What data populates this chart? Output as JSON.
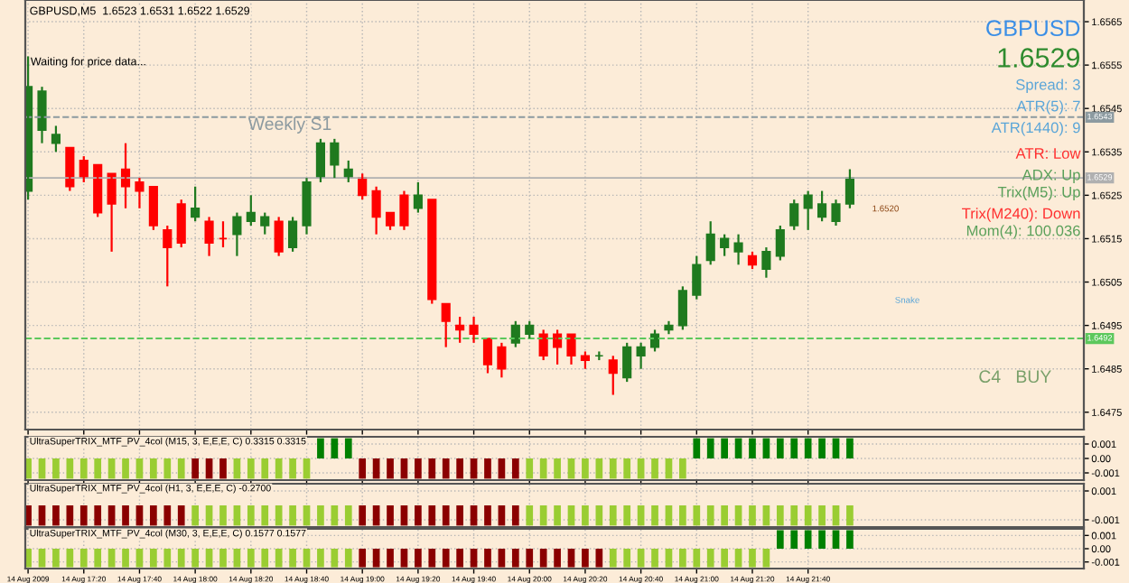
{
  "chart_data": [
    {
      "type": "candlestick",
      "title": "GBPUSD,M5  1.6523 1.6531 1.6522 1.6529",
      "x": [
        "2009-08-14T17:00",
        "2009-08-14T17:05",
        "2009-08-14T17:10",
        "2009-08-14T17:15",
        "2009-08-14T17:20",
        "2009-08-14T17:25",
        "2009-08-14T17:30",
        "2009-08-14T17:35",
        "2009-08-14T17:40",
        "2009-08-14T17:45",
        "2009-08-14T17:50",
        "2009-08-14T17:55",
        "2009-08-14T18:00",
        "2009-08-14T18:05",
        "2009-08-14T18:10",
        "2009-08-14T18:15",
        "2009-08-14T18:20",
        "2009-08-14T18:25",
        "2009-08-14T18:30",
        "2009-08-14T18:35",
        "2009-08-14T18:40",
        "2009-08-14T18:45",
        "2009-08-14T18:50",
        "2009-08-14T18:55",
        "2009-08-14T19:00",
        "2009-08-14T19:05",
        "2009-08-14T19:10",
        "2009-08-14T19:15",
        "2009-08-14T19:20",
        "2009-08-14T19:25",
        "2009-08-14T19:30",
        "2009-08-14T19:35",
        "2009-08-14T19:40",
        "2009-08-14T19:45",
        "2009-08-14T19:50",
        "2009-08-14T19:55",
        "2009-08-14T20:00",
        "2009-08-14T20:05",
        "2009-08-14T20:10",
        "2009-08-14T20:15",
        "2009-08-14T20:20",
        "2009-08-14T20:25",
        "2009-08-14T20:30",
        "2009-08-14T20:35",
        "2009-08-14T20:40",
        "2009-08-14T20:45",
        "2009-08-14T20:50",
        "2009-08-14T20:55",
        "2009-08-14T21:00",
        "2009-08-14T21:05",
        "2009-08-14T21:10",
        "2009-08-14T21:15",
        "2009-08-14T21:20",
        "2009-08-14T21:25",
        "2009-08-14T21:30",
        "2009-08-14T21:35",
        "2009-08-14T21:40",
        "2009-08-14T21:45",
        "2009-08-14T21:50",
        "2009-08-14T21:55"
      ],
      "ohlc": [
        [
          1.6526,
          1.6557,
          1.6524,
          1.655
        ],
        [
          1.654,
          1.655,
          1.6537,
          1.6549
        ],
        [
          1.6537,
          1.6541,
          1.6535,
          1.6539
        ],
        [
          1.6536,
          1.6536,
          1.6526,
          1.6527
        ],
        [
          1.6533,
          1.6534,
          1.6528,
          1.6529
        ],
        [
          1.6532,
          1.6532,
          1.652,
          1.6521
        ],
        [
          1.653,
          1.653,
          1.6512,
          1.6523
        ],
        [
          1.6531,
          1.6537,
          1.6522,
          1.6527
        ],
        [
          1.6528,
          1.6529,
          1.6522,
          1.6526
        ],
        [
          1.6527,
          1.6527,
          1.6517,
          1.6518
        ],
        [
          1.6517,
          1.6518,
          1.6504,
          1.6513
        ],
        [
          1.6523,
          1.6524,
          1.6513,
          1.6514
        ],
        [
          1.652,
          1.6527,
          1.6519,
          1.6522
        ],
        [
          1.6519,
          1.652,
          1.6511,
          1.6514
        ],
        [
          1.6515,
          1.6519,
          1.6513,
          1.6515
        ],
        [
          1.6516,
          1.6521,
          1.6511,
          1.652
        ],
        [
          1.6519,
          1.6525,
          1.6518,
          1.6521
        ],
        [
          1.6518,
          1.6521,
          1.6516,
          1.652
        ],
        [
          1.6519,
          1.652,
          1.6511,
          1.6512
        ],
        [
          1.6513,
          1.652,
          1.6512,
          1.6519
        ],
        [
          1.6518,
          1.6529,
          1.6516,
          1.6528
        ],
        [
          1.6529,
          1.6538,
          1.6528,
          1.6537
        ],
        [
          1.6532,
          1.6538,
          1.6529,
          1.6537
        ],
        [
          1.6529,
          1.6533,
          1.6528,
          1.6531
        ],
        [
          1.6529,
          1.653,
          1.6524,
          1.6525
        ],
        [
          1.6526,
          1.6527,
          1.6516,
          1.652
        ],
        [
          1.6521,
          1.6521,
          1.6517,
          1.6518
        ],
        [
          1.6525,
          1.6526,
          1.6517,
          1.6518
        ],
        [
          1.6522,
          1.6528,
          1.6521,
          1.6525
        ],
        [
          1.6524,
          1.6524,
          1.65,
          1.6501
        ],
        [
          1.65,
          1.65,
          1.649,
          1.6496
        ],
        [
          1.6495,
          1.6497,
          1.6491,
          1.6494
        ],
        [
          1.6495,
          1.6497,
          1.6491,
          1.6493
        ],
        [
          1.6492,
          1.6492,
          1.6484,
          1.6486
        ],
        [
          1.649,
          1.6491,
          1.6483,
          1.6485
        ],
        [
          1.6491,
          1.6496,
          1.649,
          1.6495
        ],
        [
          1.6493,
          1.6496,
          1.6492,
          1.6495
        ],
        [
          1.6493,
          1.6494,
          1.6487,
          1.6488
        ],
        [
          1.6493,
          1.6494,
          1.6486,
          1.649
        ],
        [
          1.6493,
          1.6493,
          1.6486,
          1.6488
        ],
        [
          1.6488,
          1.6489,
          1.6485,
          1.6487
        ],
        [
          1.6488,
          1.6489,
          1.6487,
          1.6488
        ],
        [
          1.6487,
          1.6488,
          1.6479,
          1.6484
        ],
        [
          1.6483,
          1.6491,
          1.6482,
          1.649
        ],
        [
          1.6488,
          1.6491,
          1.6485,
          1.649
        ],
        [
          1.649,
          1.6494,
          1.6489,
          1.6493
        ],
        [
          1.6494,
          1.6496,
          1.6493,
          1.6495
        ],
        [
          1.6495,
          1.6504,
          1.6494,
          1.6503
        ],
        [
          1.6502,
          1.6511,
          1.6501,
          1.6509
        ],
        [
          1.651,
          1.6519,
          1.6509,
          1.6516
        ],
        [
          1.6513,
          1.6516,
          1.6511,
          1.6515
        ],
        [
          1.6512,
          1.6516,
          1.6509,
          1.6514
        ],
        [
          1.6511,
          1.6512,
          1.6508,
          1.6509
        ],
        [
          1.6508,
          1.6513,
          1.6506,
          1.6512
        ],
        [
          1.6511,
          1.6518,
          1.651,
          1.6517
        ],
        [
          1.6518,
          1.6524,
          1.6517,
          1.6523
        ],
        [
          1.6522,
          1.6526,
          1.6517,
          1.6525
        ],
        [
          1.652,
          1.6526,
          1.6519,
          1.6523
        ],
        [
          1.6519,
          1.6524,
          1.6518,
          1.6523
        ],
        [
          1.6523,
          1.6531,
          1.6522,
          1.6529
        ]
      ],
      "colors": [
        "#1f7a1f",
        "#1f7a1f",
        "#1f7a1f",
        "#ff0000",
        "#ff0000",
        "#ff0000",
        "#ff0000",
        "#ff0000",
        "#ff0000",
        "#ff0000",
        "#ff0000",
        "#ff0000",
        "#1f7a1f",
        "#ff0000",
        "#ff0000",
        "#1f7a1f",
        "#1f7a1f",
        "#1f7a1f",
        "#ff0000",
        "#1f7a1f",
        "#1f7a1f",
        "#1f7a1f",
        "#1f7a1f",
        "#1f7a1f",
        "#ff0000",
        "#ff0000",
        "#ff0000",
        "#ff0000",
        "#1f7a1f",
        "#ff0000",
        "#ff0000",
        "#ff0000",
        "#ff0000",
        "#ff0000",
        "#ff0000",
        "#1f7a1f",
        "#1f7a1f",
        "#ff0000",
        "#ff0000",
        "#ff0000",
        "#ff0000",
        "#1f7a1f",
        "#ff0000",
        "#1f7a1f",
        "#1f7a1f",
        "#1f7a1f",
        "#1f7a1f",
        "#1f7a1f",
        "#1f7a1f",
        "#1f7a1f",
        "#1f7a1f",
        "#1f7a1f",
        "#ff0000",
        "#1f7a1f",
        "#1f7a1f",
        "#1f7a1f",
        "#1f7a1f",
        "#1f7a1f",
        "#1f7a1f",
        "#1f7a1f"
      ],
      "xlim": [
        "2009-08-14T16:59",
        "2009-08-14T23:19"
      ],
      "xticks": [
        {
          "value": "2009-08-14T17:00",
          "label": null
        },
        {
          "value": "2009-08-14T17:20",
          "label": null
        },
        {
          "value": "2009-08-14T17:40",
          "label": null
        },
        {
          "value": "2009-08-14T18:00",
          "label": null
        },
        {
          "value": "2009-08-14T18:20",
          "label": null
        },
        {
          "value": "2009-08-14T18:40",
          "label": null
        },
        {
          "value": "2009-08-14T19:00",
          "label": null
        },
        {
          "value": "2009-08-14T19:20",
          "label": null
        },
        {
          "value": "2009-08-14T19:40",
          "label": null
        },
        {
          "value": "2009-08-14T20:00",
          "label": null
        },
        {
          "value": "2009-08-14T20:20",
          "label": null
        },
        {
          "value": "2009-08-14T20:40",
          "label": null
        },
        {
          "value": "2009-08-14T21:00",
          "label": null
        },
        {
          "value": "2009-08-14T21:20",
          "label": null
        },
        {
          "value": "2009-08-14T21:40",
          "label": null
        }
      ],
      "ylim": [
        1.6471,
        1.657
      ],
      "yticks": [
        1.6475,
        1.6485,
        1.6495,
        1.6505,
        1.6515,
        1.6525,
        1.6535,
        1.6545,
        1.6555,
        1.6565
      ],
      "grid": true,
      "tick_labels": "y",
      "ref_lines": [
        {
          "axis": "y",
          "value": 1.6543,
          "label": "Weekly S1",
          "color": "#8c9aa0",
          "line_style": "dashed"
        },
        {
          "axis": "y",
          "value": 1.6529,
          "color": "#b0b0b0",
          "line_style": "solid"
        },
        {
          "axis": "y",
          "value": 1.6492,
          "color": "#5cc85c",
          "line_style": "dashed"
        }
      ],
      "annotations": [
        "Waiting for price data...",
        "GBPUSD",
        "1.6529",
        "Spread: 3",
        "ATR(5): 7",
        "ATR(1440): 9",
        "ATR: Low",
        "ADX: Up",
        "Trix(M5): Up",
        "Trix(M240): Down",
        "Mom(4): 100.036",
        "Snake",
        "C4   BUY",
        "1.6520",
        {
          "text": "1.6543",
          "y": 1.6543
        },
        {
          "text": "1.6529",
          "y": 1.6529
        },
        {
          "text": "1.6492",
          "y": 1.6492
        }
      ]
    },
    {
      "type": "bar",
      "title": "UltraSuperTRIX_MTF_PV_4col (M15, 3, E,E,E, C) 0.3315 0.3315",
      "x": [
        "2009-08-14T17:00",
        "2009-08-14T17:05",
        "2009-08-14T17:10",
        "2009-08-14T17:15",
        "2009-08-14T17:20",
        "2009-08-14T17:25",
        "2009-08-14T17:30",
        "2009-08-14T17:35",
        "2009-08-14T17:40",
        "2009-08-14T17:45",
        "2009-08-14T17:50",
        "2009-08-14T17:55",
        "2009-08-14T18:00",
        "2009-08-14T18:05",
        "2009-08-14T18:10",
        "2009-08-14T18:15",
        "2009-08-14T18:20",
        "2009-08-14T18:25",
        "2009-08-14T18:30",
        "2009-08-14T18:35",
        "2009-08-14T18:40",
        "2009-08-14T18:45",
        "2009-08-14T18:50",
        "2009-08-14T18:55",
        "2009-08-14T19:00",
        "2009-08-14T19:05",
        "2009-08-14T19:10",
        "2009-08-14T19:15",
        "2009-08-14T19:20",
        "2009-08-14T19:25",
        "2009-08-14T19:30",
        "2009-08-14T19:35",
        "2009-08-14T19:40",
        "2009-08-14T19:45",
        "2009-08-14T19:50",
        "2009-08-14T19:55",
        "2009-08-14T20:00",
        "2009-08-14T20:05",
        "2009-08-14T20:10",
        "2009-08-14T20:15",
        "2009-08-14T20:20",
        "2009-08-14T20:25",
        "2009-08-14T20:30",
        "2009-08-14T20:35",
        "2009-08-14T20:40",
        "2009-08-14T20:45",
        "2009-08-14T20:50",
        "2009-08-14T20:55",
        "2009-08-14T21:00",
        "2009-08-14T21:05",
        "2009-08-14T21:10",
        "2009-08-14T21:15",
        "2009-08-14T21:20",
        "2009-08-14T21:25",
        "2009-08-14T21:30",
        "2009-08-14T21:35",
        "2009-08-14T21:40",
        "2009-08-14T21:45",
        "2009-08-14T21:50",
        "2009-08-14T21:55"
      ],
      "values": [
        -0.0014,
        -0.0014,
        -0.0014,
        -0.0014,
        -0.0014,
        -0.0014,
        -0.0014,
        -0.0014,
        -0.0014,
        -0.0014,
        -0.0014,
        -0.0014,
        -0.0014,
        -0.0014,
        -0.0014,
        -0.0014,
        -0.0014,
        -0.0014,
        -0.0014,
        -0.0014,
        -0.0014,
        0.0014,
        0.0014,
        0.0014,
        -0.0014,
        -0.0014,
        -0.0014,
        -0.0014,
        -0.0014,
        -0.0014,
        -0.0014,
        -0.0014,
        -0.0014,
        -0.0014,
        -0.0014,
        -0.0014,
        -0.0014,
        -0.0014,
        -0.0014,
        -0.0014,
        -0.0014,
        -0.0014,
        -0.0014,
        -0.0014,
        -0.0014,
        -0.0014,
        -0.0014,
        -0.0014,
        0.0014,
        0.0014,
        0.0014,
        0.0014,
        0.0014,
        0.0014,
        0.0014,
        0.0014,
        0.0014,
        0.0014,
        0.0014,
        0.0014
      ],
      "colors": [
        "#9acd32",
        "#9acd32",
        "#9acd32",
        "#9acd32",
        "#9acd32",
        "#9acd32",
        "#9acd32",
        "#9acd32",
        "#9acd32",
        "#9acd32",
        "#9acd32",
        "#9acd32",
        "#8b0000",
        "#8b0000",
        "#8b0000",
        "#9acd32",
        "#9acd32",
        "#9acd32",
        "#9acd32",
        "#9acd32",
        "#9acd32",
        "#008000",
        "#008000",
        "#008000",
        "#8b0000",
        "#8b0000",
        "#8b0000",
        "#8b0000",
        "#8b0000",
        "#8b0000",
        "#8b0000",
        "#8b0000",
        "#8b0000",
        "#8b0000",
        "#8b0000",
        "#8b0000",
        "#9acd32",
        "#9acd32",
        "#9acd32",
        "#9acd32",
        "#9acd32",
        "#9acd32",
        "#9acd32",
        "#9acd32",
        "#9acd32",
        "#9acd32",
        "#9acd32",
        "#9acd32",
        "#008000",
        "#008000",
        "#008000",
        "#008000",
        "#008000",
        "#008000",
        "#008000",
        "#008000",
        "#008000",
        "#008000",
        "#008000",
        "#008000"
      ],
      "xlim": [
        "2009-08-14T16:59",
        "2009-08-14T23:19"
      ],
      "xticks": [
        {
          "value": "2009-08-14T17:00",
          "label": null
        },
        {
          "value": "2009-08-14T17:20",
          "label": null
        },
        {
          "value": "2009-08-14T17:40",
          "label": null
        },
        {
          "value": "2009-08-14T18:00",
          "label": null
        },
        {
          "value": "2009-08-14T18:20",
          "label": null
        },
        {
          "value": "2009-08-14T18:40",
          "label": null
        },
        {
          "value": "2009-08-14T19:00",
          "label": null
        },
        {
          "value": "2009-08-14T19:20",
          "label": null
        },
        {
          "value": "2009-08-14T19:40",
          "label": null
        },
        {
          "value": "2009-08-14T20:00",
          "label": null
        },
        {
          "value": "2009-08-14T20:20",
          "label": null
        },
        {
          "value": "2009-08-14T20:40",
          "label": null
        },
        {
          "value": "2009-08-14T21:00",
          "label": null
        },
        {
          "value": "2009-08-14T21:20",
          "label": null
        },
        {
          "value": "2009-08-14T21:40",
          "label": null
        }
      ],
      "ylim": [
        -0.0015,
        0.0015
      ],
      "yticks": [
        0.001,
        {
          "value": 0,
          "label": "0.00"
        },
        -0.001
      ],
      "grid": true,
      "tick_labels": "y"
    },
    {
      "type": "bar",
      "title": "UltraSuperTRIX_MTF_PV_4col (H1, 3, E,E,E, C) -0.2700",
      "x": [
        "2009-08-14T17:00",
        "2009-08-14T17:05",
        "2009-08-14T17:10",
        "2009-08-14T17:15",
        "2009-08-14T17:20",
        "2009-08-14T17:25",
        "2009-08-14T17:30",
        "2009-08-14T17:35",
        "2009-08-14T17:40",
        "2009-08-14T17:45",
        "2009-08-14T17:50",
        "2009-08-14T17:55",
        "2009-08-14T18:00",
        "2009-08-14T18:05",
        "2009-08-14T18:10",
        "2009-08-14T18:15",
        "2009-08-14T18:20",
        "2009-08-14T18:25",
        "2009-08-14T18:30",
        "2009-08-14T18:35",
        "2009-08-14T18:40",
        "2009-08-14T18:45",
        "2009-08-14T18:50",
        "2009-08-14T18:55",
        "2009-08-14T19:00",
        "2009-08-14T19:05",
        "2009-08-14T19:10",
        "2009-08-14T19:15",
        "2009-08-14T19:20",
        "2009-08-14T19:25",
        "2009-08-14T19:30",
        "2009-08-14T19:35",
        "2009-08-14T19:40",
        "2009-08-14T19:45",
        "2009-08-14T19:50",
        "2009-08-14T19:55",
        "2009-08-14T20:00",
        "2009-08-14T20:05",
        "2009-08-14T20:10",
        "2009-08-14T20:15",
        "2009-08-14T20:20",
        "2009-08-14T20:25",
        "2009-08-14T20:30",
        "2009-08-14T20:35",
        "2009-08-14T20:40",
        "2009-08-14T20:45",
        "2009-08-14T20:50",
        "2009-08-14T20:55",
        "2009-08-14T21:00",
        "2009-08-14T21:05",
        "2009-08-14T21:10",
        "2009-08-14T21:15",
        "2009-08-14T21:20",
        "2009-08-14T21:25",
        "2009-08-14T21:30",
        "2009-08-14T21:35",
        "2009-08-14T21:40",
        "2009-08-14T21:45",
        "2009-08-14T21:50",
        "2009-08-14T21:55"
      ],
      "values": [
        -0.0014,
        -0.0014,
        -0.0014,
        -0.0014,
        -0.0014,
        -0.0014,
        -0.0014,
        -0.0014,
        -0.0014,
        -0.0014,
        -0.0014,
        -0.0014,
        -0.0014,
        -0.0014,
        -0.0014,
        -0.0014,
        -0.0014,
        -0.0014,
        -0.0014,
        -0.0014,
        -0.0014,
        -0.0014,
        -0.0014,
        -0.0014,
        -0.0014,
        -0.0014,
        -0.0014,
        -0.0014,
        -0.0014,
        -0.0014,
        -0.0014,
        -0.0014,
        -0.0014,
        -0.0014,
        -0.0014,
        -0.0014,
        -0.0014,
        -0.0014,
        -0.0014,
        -0.0014,
        -0.0014,
        -0.0014,
        -0.0014,
        -0.0014,
        -0.0014,
        -0.0014,
        -0.0014,
        -0.0014,
        -0.0014,
        -0.0014,
        -0.0014,
        -0.0014,
        -0.0014,
        -0.0014,
        -0.0014,
        -0.0014,
        -0.0014,
        -0.0014,
        -0.0014,
        -0.0014
      ],
      "colors": [
        "#8b0000",
        "#8b0000",
        "#8b0000",
        "#8b0000",
        "#8b0000",
        "#8b0000",
        "#8b0000",
        "#8b0000",
        "#8b0000",
        "#8b0000",
        "#8b0000",
        "#8b0000",
        "#9acd32",
        "#9acd32",
        "#9acd32",
        "#9acd32",
        "#9acd32",
        "#9acd32",
        "#9acd32",
        "#9acd32",
        "#9acd32",
        "#9acd32",
        "#9acd32",
        "#9acd32",
        "#8b0000",
        "#8b0000",
        "#8b0000",
        "#8b0000",
        "#8b0000",
        "#8b0000",
        "#8b0000",
        "#8b0000",
        "#8b0000",
        "#8b0000",
        "#8b0000",
        "#8b0000",
        "#9acd32",
        "#9acd32",
        "#9acd32",
        "#9acd32",
        "#9acd32",
        "#9acd32",
        "#9acd32",
        "#9acd32",
        "#9acd32",
        "#9acd32",
        "#9acd32",
        "#9acd32",
        "#9acd32",
        "#9acd32",
        "#9acd32",
        "#9acd32",
        "#9acd32",
        "#9acd32",
        "#9acd32",
        "#9acd32",
        "#9acd32",
        "#9acd32",
        "#9acd32",
        "#9acd32"
      ],
      "xlim": [
        "2009-08-14T16:59",
        "2009-08-14T23:19"
      ],
      "xticks": [
        {
          "value": "2009-08-14T17:00",
          "label": null
        },
        {
          "value": "2009-08-14T17:20",
          "label": null
        },
        {
          "value": "2009-08-14T17:40",
          "label": null
        },
        {
          "value": "2009-08-14T18:00",
          "label": null
        },
        {
          "value": "2009-08-14T18:20",
          "label": null
        },
        {
          "value": "2009-08-14T18:40",
          "label": null
        },
        {
          "value": "2009-08-14T19:00",
          "label": null
        },
        {
          "value": "2009-08-14T19:20",
          "label": null
        },
        {
          "value": "2009-08-14T19:40",
          "label": null
        },
        {
          "value": "2009-08-14T20:00",
          "label": null
        },
        {
          "value": "2009-08-14T20:20",
          "label": null
        },
        {
          "value": "2009-08-14T20:40",
          "label": null
        },
        {
          "value": "2009-08-14T21:00",
          "label": null
        },
        {
          "value": "2009-08-14T21:20",
          "label": null
        },
        {
          "value": "2009-08-14T21:40",
          "label": null
        }
      ],
      "ylim": [
        -0.0015,
        0.0015
      ],
      "yticks": [
        0.001,
        -0.001
      ],
      "grid": true,
      "tick_labels": "y"
    },
    {
      "type": "bar",
      "title": "UltraSuperTRIX_MTF_PV_4col (M30, 3, E,E,E, C) 0.1577 0.1577",
      "x": [
        "2009-08-14T17:00",
        "2009-08-14T17:05",
        "2009-08-14T17:10",
        "2009-08-14T17:15",
        "2009-08-14T17:20",
        "2009-08-14T17:25",
        "2009-08-14T17:30",
        "2009-08-14T17:35",
        "2009-08-14T17:40",
        "2009-08-14T17:45",
        "2009-08-14T17:50",
        "2009-08-14T17:55",
        "2009-08-14T18:00",
        "2009-08-14T18:05",
        "2009-08-14T18:10",
        "2009-08-14T18:15",
        "2009-08-14T18:20",
        "2009-08-14T18:25",
        "2009-08-14T18:30",
        "2009-08-14T18:35",
        "2009-08-14T18:40",
        "2009-08-14T18:45",
        "2009-08-14T18:50",
        "2009-08-14T18:55",
        "2009-08-14T19:00",
        "2009-08-14T19:05",
        "2009-08-14T19:10",
        "2009-08-14T19:15",
        "2009-08-14T19:20",
        "2009-08-14T19:25",
        "2009-08-14T19:30",
        "2009-08-14T19:35",
        "2009-08-14T19:40",
        "2009-08-14T19:45",
        "2009-08-14T19:50",
        "2009-08-14T19:55",
        "2009-08-14T20:00",
        "2009-08-14T20:05",
        "2009-08-14T20:10",
        "2009-08-14T20:15",
        "2009-08-14T20:20",
        "2009-08-14T20:25",
        "2009-08-14T20:30",
        "2009-08-14T20:35",
        "2009-08-14T20:40",
        "2009-08-14T20:45",
        "2009-08-14T20:50",
        "2009-08-14T20:55",
        "2009-08-14T21:00",
        "2009-08-14T21:05",
        "2009-08-14T21:10",
        "2009-08-14T21:15",
        "2009-08-14T21:20",
        "2009-08-14T21:25",
        "2009-08-14T21:30",
        "2009-08-14T21:35",
        "2009-08-14T21:40",
        "2009-08-14T21:45",
        "2009-08-14T21:50",
        "2009-08-14T21:55"
      ],
      "values": [
        -0.0014,
        -0.0014,
        -0.0014,
        -0.0014,
        -0.0014,
        -0.0014,
        -0.0014,
        -0.0014,
        -0.0014,
        -0.0014,
        -0.0014,
        -0.0014,
        -0.0014,
        -0.0014,
        -0.0014,
        -0.0014,
        -0.0014,
        -0.0014,
        -0.0014,
        -0.0014,
        -0.0014,
        -0.0014,
        -0.0014,
        -0.0014,
        -0.0014,
        -0.0014,
        -0.0014,
        -0.0014,
        -0.0014,
        -0.0014,
        -0.0014,
        -0.0014,
        -0.0014,
        -0.0014,
        -0.0014,
        -0.0014,
        -0.0014,
        -0.0014,
        -0.0014,
        -0.0014,
        -0.0014,
        -0.0014,
        -0.0014,
        -0.0014,
        -0.0014,
        -0.0014,
        -0.0014,
        -0.0014,
        -0.0014,
        -0.0014,
        -0.0014,
        -0.0014,
        -0.0014,
        -0.0014,
        0.0014,
        0.0014,
        0.0014,
        0.0014,
        0.0014,
        0.0014
      ],
      "colors": [
        "#9acd32",
        "#9acd32",
        "#9acd32",
        "#9acd32",
        "#9acd32",
        "#9acd32",
        "#9acd32",
        "#9acd32",
        "#9acd32",
        "#9acd32",
        "#9acd32",
        "#9acd32",
        "#9acd32",
        "#9acd32",
        "#9acd32",
        "#9acd32",
        "#9acd32",
        "#9acd32",
        "#9acd32",
        "#9acd32",
        "#9acd32",
        "#9acd32",
        "#9acd32",
        "#9acd32",
        "#8b0000",
        "#8b0000",
        "#8b0000",
        "#8b0000",
        "#8b0000",
        "#8b0000",
        "#8b0000",
        "#8b0000",
        "#8b0000",
        "#8b0000",
        "#8b0000",
        "#8b0000",
        "#8b0000",
        "#8b0000",
        "#8b0000",
        "#8b0000",
        "#8b0000",
        "#8b0000",
        "#9acd32",
        "#9acd32",
        "#9acd32",
        "#9acd32",
        "#9acd32",
        "#9acd32",
        "#9acd32",
        "#9acd32",
        "#9acd32",
        "#9acd32",
        "#9acd32",
        "#9acd32",
        "#008000",
        "#008000",
        "#008000",
        "#008000",
        "#008000",
        "#008000"
      ],
      "xlim": [
        "2009-08-14T16:59",
        "2009-08-14T23:19"
      ],
      "xticks": [
        {
          "value": "2009-08-14T17:00",
          "label": "14 Aug 2009"
        },
        {
          "value": "2009-08-14T17:20",
          "label": "14 Aug 17:20"
        },
        {
          "value": "2009-08-14T17:40",
          "label": "14 Aug 17:40"
        },
        {
          "value": "2009-08-14T18:00",
          "label": "14 Aug 18:00"
        },
        {
          "value": "2009-08-14T18:20",
          "label": "14 Aug 18:20"
        },
        {
          "value": "2009-08-14T18:40",
          "label": "14 Aug 18:40"
        },
        {
          "value": "2009-08-14T19:00",
          "label": "14 Aug 19:00"
        },
        {
          "value": "2009-08-14T19:20",
          "label": "14 Aug 19:20"
        },
        {
          "value": "2009-08-14T19:40",
          "label": "14 Aug 19:40"
        },
        {
          "value": "2009-08-14T20:00",
          "label": "14 Aug 20:00"
        },
        {
          "value": "2009-08-14T20:20",
          "label": "14 Aug 20:20"
        },
        {
          "value": "2009-08-14T20:40",
          "label": "14 Aug 20:40"
        },
        {
          "value": "2009-08-14T21:00",
          "label": "14 Aug 21:00"
        },
        {
          "value": "2009-08-14T21:20",
          "label": "14 Aug 21:20"
        },
        {
          "value": "2009-08-14T21:40",
          "label": "14 Aug 21:40"
        }
      ],
      "ylim": [
        -0.0015,
        0.0015
      ],
      "yticks": [
        0.001,
        {
          "value": 0,
          "label": "0.00"
        },
        -0.001
      ],
      "grid": true
    }
  ]
}
